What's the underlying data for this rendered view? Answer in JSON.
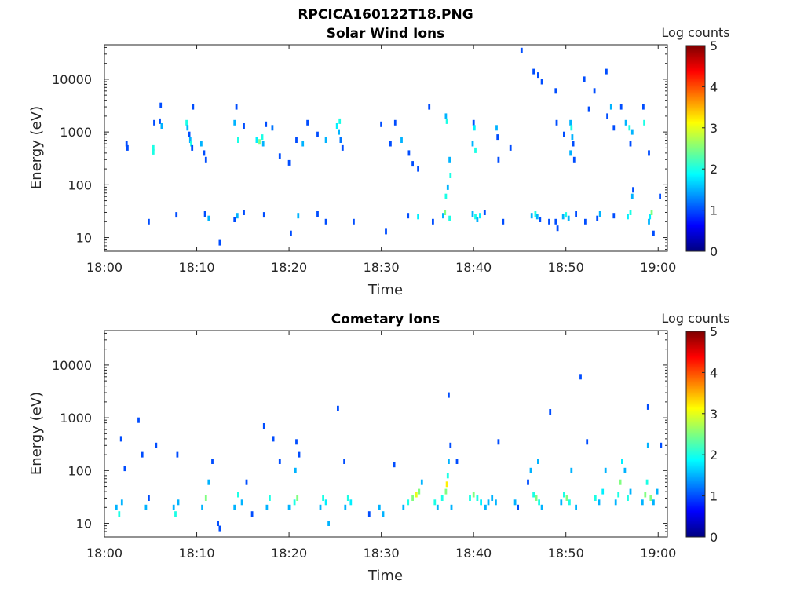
{
  "figure_title": "RPCICA160122T18.PNG",
  "chart_data": [
    {
      "type": "heatmap",
      "title": "Solar Wind Ions",
      "xlabel": "Time",
      "ylabel": "Energy (eV)",
      "y_scale": "log",
      "ylim": [
        5.5,
        45000
      ],
      "xlim": [
        "18:00",
        "19:01"
      ],
      "x_ticks": [
        "18:00",
        "18:10",
        "18:20",
        "18:30",
        "18:40",
        "18:50",
        "19:00"
      ],
      "y_ticks": [
        "10",
        "100",
        "1000",
        "10000"
      ],
      "colorbar": {
        "label": "Log counts",
        "range": [
          0,
          5
        ],
        "ticks": [
          "0",
          "1",
          "2",
          "3",
          "4",
          "5"
        ],
        "colormap": "jet"
      },
      "background": "#ffffff",
      "points_log_counts_by_minute_energy": [
        [
          2.4,
          600,
          1
        ],
        [
          2.5,
          500,
          1
        ],
        [
          5.3,
          500,
          2
        ],
        [
          5.3,
          420,
          2
        ],
        [
          5.4,
          1500,
          1
        ],
        [
          6.0,
          1600,
          1
        ],
        [
          6.1,
          3200,
          1
        ],
        [
          6.2,
          1300,
          1.5
        ],
        [
          8.9,
          1500,
          2
        ],
        [
          9.0,
          1200,
          1.5
        ],
        [
          9.2,
          900,
          1
        ],
        [
          9.3,
          700,
          1.5
        ],
        [
          9.4,
          600,
          2
        ],
        [
          9.5,
          500,
          1
        ],
        [
          9.6,
          3000,
          1
        ],
        [
          10.5,
          600,
          1.5
        ],
        [
          10.8,
          400,
          1
        ],
        [
          11.0,
          300,
          1
        ],
        [
          14.1,
          1500,
          1.5
        ],
        [
          14.3,
          3000,
          1
        ],
        [
          14.5,
          700,
          2
        ],
        [
          15.1,
          1300,
          1
        ],
        [
          16.5,
          700,
          1.8
        ],
        [
          16.8,
          650,
          2.5
        ],
        [
          17.1,
          800,
          2
        ],
        [
          17.2,
          600,
          1.5
        ],
        [
          17.5,
          1400,
          1
        ],
        [
          18.2,
          1200,
          1.2
        ],
        [
          19.0,
          350,
          1
        ],
        [
          20.0,
          260,
          1
        ],
        [
          20.8,
          700,
          1
        ],
        [
          21.5,
          600,
          1.5
        ],
        [
          22.0,
          1500,
          1
        ],
        [
          23.1,
          900,
          1
        ],
        [
          24.0,
          700,
          1.5
        ],
        [
          25.2,
          1300,
          1.8
        ],
        [
          25.5,
          1600,
          2
        ],
        [
          25.4,
          1000,
          1.5
        ],
        [
          25.6,
          700,
          1.2
        ],
        [
          25.8,
          500,
          1
        ],
        [
          30.0,
          1400,
          1
        ],
        [
          31.0,
          600,
          1
        ],
        [
          31.5,
          1500,
          1
        ],
        [
          32.2,
          700,
          1.5
        ],
        [
          33.0,
          400,
          1
        ],
        [
          33.4,
          250,
          1
        ],
        [
          34.0,
          200,
          1
        ],
        [
          35.2,
          3000,
          1
        ],
        [
          37.0,
          2000,
          1.5
        ],
        [
          37.1,
          1600,
          2
        ],
        [
          37.4,
          300,
          1.5
        ],
        [
          37.5,
          150,
          2
        ],
        [
          40.0,
          1500,
          1
        ],
        [
          40.1,
          1200,
          1.8
        ],
        [
          39.9,
          600,
          1.5
        ],
        [
          40.2,
          450,
          2
        ],
        [
          42.5,
          1200,
          1.5
        ],
        [
          42.6,
          800,
          1
        ],
        [
          42.7,
          300,
          1
        ],
        [
          44.0,
          500,
          1
        ],
        [
          45.2,
          35000,
          1
        ],
        [
          46.5,
          14000,
          1
        ],
        [
          47.0,
          12000,
          1
        ],
        [
          47.4,
          9000,
          1
        ],
        [
          48.9,
          6000,
          1
        ],
        [
          49.0,
          1500,
          1
        ],
        [
          49.8,
          900,
          1
        ],
        [
          50.5,
          1500,
          1.5
        ],
        [
          50.6,
          1200,
          2
        ],
        [
          50.7,
          800,
          1.5
        ],
        [
          50.8,
          600,
          1
        ],
        [
          50.5,
          400,
          1.5
        ],
        [
          50.9,
          300,
          1
        ],
        [
          52.0,
          10000,
          1
        ],
        [
          52.5,
          2700,
          1
        ],
        [
          53.1,
          6000,
          1
        ],
        [
          54.4,
          14000,
          1
        ],
        [
          54.5,
          2000,
          1
        ],
        [
          54.9,
          3000,
          1.5
        ],
        [
          55.2,
          1200,
          1
        ],
        [
          56.0,
          3000,
          1
        ],
        [
          56.5,
          1500,
          1.5
        ],
        [
          56.9,
          1200,
          2
        ],
        [
          57.2,
          1000,
          1.5
        ],
        [
          57.0,
          600,
          1
        ],
        [
          58.4,
          3000,
          1
        ],
        [
          58.5,
          1500,
          2
        ],
        [
          59.0,
          400,
          1
        ],
        [
          4.8,
          20,
          1
        ],
        [
          7.8,
          27,
          1
        ],
        [
          10.9,
          28,
          1
        ],
        [
          11.3,
          23,
          1.5
        ],
        [
          12.5,
          8,
          1
        ],
        [
          14.1,
          22,
          1
        ],
        [
          14.4,
          26,
          1.5
        ],
        [
          15.1,
          30,
          1
        ],
        [
          17.3,
          27,
          1
        ],
        [
          20.2,
          12,
          1
        ],
        [
          21.0,
          26,
          1.5
        ],
        [
          23.1,
          28,
          1
        ],
        [
          24.0,
          20,
          1
        ],
        [
          27.0,
          20,
          1
        ],
        [
          30.5,
          13,
          1
        ],
        [
          32.9,
          26,
          1
        ],
        [
          34.0,
          25,
          1.8
        ],
        [
          35.6,
          20,
          1
        ],
        [
          36.7,
          26,
          1.5
        ],
        [
          36.9,
          30,
          2.5
        ],
        [
          37.0,
          60,
          2
        ],
        [
          37.2,
          90,
          1.5
        ],
        [
          37.4,
          23,
          2
        ],
        [
          39.9,
          28,
          1.5
        ],
        [
          40.2,
          25,
          2
        ],
        [
          40.4,
          22,
          1.5
        ],
        [
          40.7,
          26,
          1.8
        ],
        [
          41.2,
          30,
          1
        ],
        [
          43.2,
          20,
          1
        ],
        [
          46.3,
          26,
          1.5
        ],
        [
          46.7,
          28,
          2
        ],
        [
          46.9,
          25,
          1.5
        ],
        [
          47.2,
          22,
          1
        ],
        [
          48.2,
          20,
          1
        ],
        [
          48.9,
          20,
          1
        ],
        [
          49.1,
          15,
          1
        ],
        [
          49.7,
          25,
          1.5
        ],
        [
          50.0,
          27,
          2
        ],
        [
          50.3,
          23,
          1.5
        ],
        [
          51.1,
          28,
          1
        ],
        [
          52.1,
          20,
          1
        ],
        [
          53.4,
          23,
          1
        ],
        [
          53.7,
          28,
          1.5
        ],
        [
          55.2,
          26,
          1
        ],
        [
          56.7,
          25,
          1.8
        ],
        [
          57.0,
          30,
          2
        ],
        [
          57.2,
          60,
          1.5
        ],
        [
          57.3,
          80,
          1
        ],
        [
          59.1,
          25,
          1.8
        ],
        [
          59.3,
          30,
          2.5
        ],
        [
          59.0,
          20,
          1.5
        ],
        [
          59.5,
          12,
          1
        ],
        [
          60.2,
          60,
          1
        ]
      ]
    },
    {
      "type": "heatmap",
      "title": "Cometary Ions",
      "xlabel": "Time",
      "ylabel": "Energy (eV)",
      "y_scale": "log",
      "ylim": [
        5.5,
        45000
      ],
      "xlim": [
        "18:00",
        "19:01"
      ],
      "x_ticks": [
        "18:00",
        "18:10",
        "18:20",
        "18:30",
        "18:40",
        "18:50",
        "19:00"
      ],
      "y_ticks": [
        "10",
        "100",
        "1000",
        "10000"
      ],
      "colorbar": {
        "label": "Log counts",
        "range": [
          0,
          5
        ],
        "ticks": [
          "0",
          "1",
          "2",
          "3",
          "4",
          "5"
        ],
        "colormap": "jet"
      },
      "background": "#ffffff",
      "points_log_counts_by_minute_energy": [
        [
          1.3,
          20,
          1.5
        ],
        [
          1.6,
          15,
          2
        ],
        [
          1.9,
          25,
          1.5
        ],
        [
          2.2,
          110,
          1
        ],
        [
          1.8,
          400,
          1
        ],
        [
          3.7,
          900,
          1
        ],
        [
          4.1,
          200,
          1
        ],
        [
          4.5,
          20,
          1.5
        ],
        [
          4.8,
          30,
          1
        ],
        [
          5.6,
          300,
          1
        ],
        [
          7.5,
          20,
          1.5
        ],
        [
          7.7,
          15,
          2
        ],
        [
          8.0,
          25,
          1.5
        ],
        [
          7.9,
          200,
          1
        ],
        [
          10.6,
          20,
          1.5
        ],
        [
          11.0,
          30,
          2.5
        ],
        [
          11.3,
          60,
          1.5
        ],
        [
          11.7,
          150,
          1
        ],
        [
          12.5,
          8,
          1
        ],
        [
          14.1,
          20,
          1.5
        ],
        [
          14.5,
          35,
          2
        ],
        [
          14.9,
          25,
          1.5
        ],
        [
          15.4,
          60,
          1
        ],
        [
          17.3,
          700,
          1
        ],
        [
          17.6,
          20,
          1.5
        ],
        [
          17.9,
          30,
          2
        ],
        [
          20.0,
          20,
          1.5
        ],
        [
          20.6,
          25,
          2
        ],
        [
          20.9,
          30,
          2.5
        ],
        [
          20.7,
          100,
          1.5
        ],
        [
          21.1,
          200,
          1
        ],
        [
          20.8,
          350,
          1
        ],
        [
          23.4,
          20,
          1.5
        ],
        [
          23.7,
          30,
          2
        ],
        [
          24.0,
          25,
          1.8
        ],
        [
          25.3,
          1500,
          1
        ],
        [
          26.1,
          20,
          1.5
        ],
        [
          26.4,
          30,
          2
        ],
        [
          26.7,
          25,
          1.8
        ],
        [
          26.0,
          150,
          1
        ],
        [
          29.8,
          20,
          1.5
        ],
        [
          30.2,
          15,
          1.5
        ],
        [
          31.4,
          130,
          1
        ],
        [
          32.4,
          20,
          1.5
        ],
        [
          32.9,
          25,
          2
        ],
        [
          33.4,
          30,
          2.5
        ],
        [
          33.8,
          35,
          3
        ],
        [
          34.1,
          40,
          2.5
        ],
        [
          34.4,
          60,
          1.5
        ],
        [
          35.8,
          25,
          2
        ],
        [
          36.1,
          20,
          1.5
        ],
        [
          36.6,
          30,
          2
        ],
        [
          37.0,
          40,
          2.5
        ],
        [
          37.1,
          55,
          3.2
        ],
        [
          37.2,
          80,
          2
        ],
        [
          37.3,
          150,
          1.5
        ],
        [
          37.5,
          300,
          1
        ],
        [
          37.3,
          2700,
          1
        ],
        [
          37.6,
          20,
          1.5
        ],
        [
          38.2,
          150,
          1
        ],
        [
          39.6,
          30,
          2
        ],
        [
          40.0,
          35,
          2.5
        ],
        [
          40.4,
          30,
          2
        ],
        [
          40.8,
          25,
          1.8
        ],
        [
          41.3,
          20,
          1.5
        ],
        [
          41.6,
          25,
          1.5
        ],
        [
          42.0,
          30,
          1.5
        ],
        [
          42.4,
          25,
          1.5
        ],
        [
          42.7,
          350,
          1
        ],
        [
          44.5,
          25,
          1.5
        ],
        [
          44.8,
          20,
          1
        ],
        [
          45.9,
          60,
          1
        ],
        [
          46.2,
          100,
          1.5
        ],
        [
          46.5,
          35,
          2
        ],
        [
          46.8,
          30,
          2.5
        ],
        [
          47.1,
          25,
          2
        ],
        [
          47.4,
          20,
          1.5
        ],
        [
          47.0,
          150,
          1.5
        ],
        [
          48.3,
          1300,
          1
        ],
        [
          49.5,
          25,
          1.5
        ],
        [
          49.8,
          35,
          2
        ],
        [
          50.1,
          30,
          2.5
        ],
        [
          50.4,
          25,
          2
        ],
        [
          50.6,
          100,
          1.5
        ],
        [
          51.6,
          6000,
          1
        ],
        [
          51.1,
          20,
          1.5
        ],
        [
          52.3,
          350,
          1
        ],
        [
          53.2,
          30,
          2
        ],
        [
          53.6,
          25,
          1.5
        ],
        [
          54.0,
          40,
          1.8
        ],
        [
          54.3,
          100,
          1.5
        ],
        [
          55.4,
          25,
          1.5
        ],
        [
          55.7,
          35,
          2
        ],
        [
          55.9,
          60,
          2.5
        ],
        [
          56.1,
          150,
          1.8
        ],
        [
          56.4,
          100,
          1.5
        ],
        [
          56.7,
          30,
          2
        ],
        [
          57.0,
          40,
          1.5
        ],
        [
          58.3,
          25,
          1.5
        ],
        [
          58.6,
          35,
          2.5
        ],
        [
          58.8,
          60,
          2
        ],
        [
          58.9,
          300,
          1.5
        ],
        [
          58.9,
          1600,
          1
        ],
        [
          59.2,
          30,
          2.5
        ],
        [
          59.5,
          25,
          1.5
        ],
        [
          59.9,
          40,
          1.5
        ],
        [
          60.3,
          300,
          1
        ],
        [
          19.0,
          150,
          1
        ],
        [
          18.3,
          400,
          1
        ],
        [
          28.7,
          15,
          1
        ],
        [
          12.3,
          10,
          1
        ],
        [
          16.0,
          15,
          1
        ],
        [
          24.3,
          10,
          1.5
        ]
      ]
    }
  ]
}
